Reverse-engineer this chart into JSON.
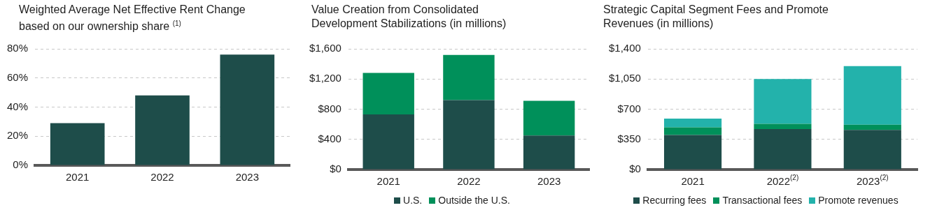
{
  "chart_data": [
    {
      "type": "bar",
      "title": "Weighted Average Net Effective Rent Change based on our ownership share $^{(1)}$",
      "categories": [
        "2021",
        "2022",
        "2023"
      ],
      "values": [
        29,
        48,
        76
      ],
      "color": "#1e4d4a",
      "ylim": [
        0,
        80
      ],
      "yticks": [
        {
          "value": 0,
          "label": "0%"
        },
        {
          "value": 20,
          "label": "20%"
        },
        {
          "value": 40,
          "label": "40%"
        },
        {
          "value": 60,
          "label": "60%"
        },
        {
          "value": 80,
          "label": "80%"
        }
      ],
      "grid": "y"
    },
    {
      "type": "bar",
      "title": "Value Creation from Consolidated Development Stabilizations (in millions)",
      "categories": [
        "2021",
        "2022",
        "2023"
      ],
      "stacked": true,
      "series": [
        {
          "name": "U.S.",
          "color": "#1e4d4a",
          "values": [
            730,
            920,
            450
          ]
        },
        {
          "name": "Outside the U.S.",
          "color": "#00905a",
          "values": [
            550,
            600,
            460
          ]
        }
      ],
      "ylim": [
        0,
        1600
      ],
      "yticks": [
        {
          "value": 0,
          "label": "$0"
        },
        {
          "value": 400,
          "label": "$400"
        },
        {
          "value": 800,
          "label": "$800"
        },
        {
          "value": 1200,
          "label": "$1,200"
        },
        {
          "value": 1600,
          "label": "$1,600"
        }
      ],
      "grid": "y",
      "legend": "bottom"
    },
    {
      "type": "bar",
      "title": "Strategic Capital Segment Fees and Promote Revenues (in millions)",
      "categories": [
        "2021",
        "2022$^{(2)}$",
        "2023$^{(2)}$"
      ],
      "stacked": true,
      "series": [
        {
          "name": "Recurring fees",
          "color": "#1e4d4a",
          "values": [
            400,
            470,
            460
          ]
        },
        {
          "name": "Transactional fees",
          "color": "#00905a",
          "values": [
            90,
            60,
            60
          ]
        },
        {
          "name": "Promote revenues",
          "color": "#23b2ab",
          "values": [
            100,
            520,
            680
          ]
        }
      ],
      "ylim": [
        0,
        1400
      ],
      "yticks": [
        {
          "value": 0,
          "label": "$0"
        },
        {
          "value": 350,
          "label": "$350"
        },
        {
          "value": 700,
          "label": "$700"
        },
        {
          "value": 1050,
          "label": "$1,050"
        },
        {
          "value": 1400,
          "label": "$1,400"
        }
      ],
      "grid": "y",
      "legend": "bottom"
    }
  ]
}
